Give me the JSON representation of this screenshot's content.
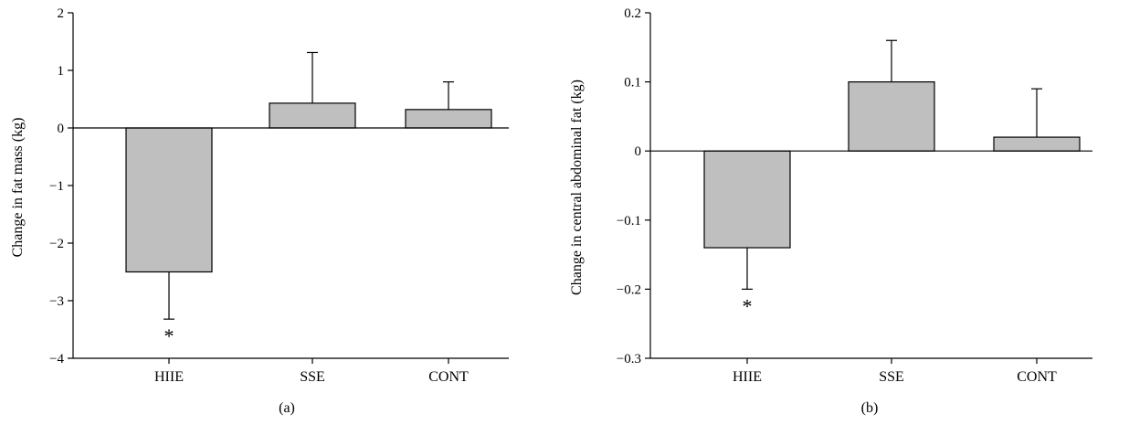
{
  "chart_data": [
    {
      "type": "bar",
      "caption": "(a)",
      "ylabel": "Change in fat mass (kg)",
      "categories": [
        "HIIE",
        "SSE",
        "CONT"
      ],
      "values": [
        -2.5,
        0.43,
        0.32
      ],
      "error_bars": [
        -0.82,
        0.88,
        0.48
      ],
      "annotations": [
        "*",
        "",
        ""
      ],
      "ylim": [
        -4,
        2
      ],
      "yticks": [
        2,
        1,
        0,
        -1,
        -2,
        -3,
        -4
      ],
      "ytick_labels": [
        "2",
        "1",
        "0",
        "−1",
        "−2",
        "−3",
        "−4"
      ],
      "bar_color": "#bfbfbf"
    },
    {
      "type": "bar",
      "caption": "(b)",
      "ylabel": "Change in central abdominal fat (kg)",
      "categories": [
        "HIIE",
        "SSE",
        "CONT"
      ],
      "values": [
        -0.14,
        0.1,
        0.02
      ],
      "error_bars": [
        -0.06,
        0.06,
        0.07
      ],
      "annotations": [
        "*",
        "",
        ""
      ],
      "ylim": [
        -0.3,
        0.2
      ],
      "yticks": [
        0.2,
        0.1,
        0,
        -0.1,
        -0.2,
        -0.3
      ],
      "ytick_labels": [
        "0.2",
        "0.1",
        "0",
        "−0.1",
        "−0.2",
        "−0.3"
      ],
      "bar_color": "#bfbfbf"
    }
  ]
}
